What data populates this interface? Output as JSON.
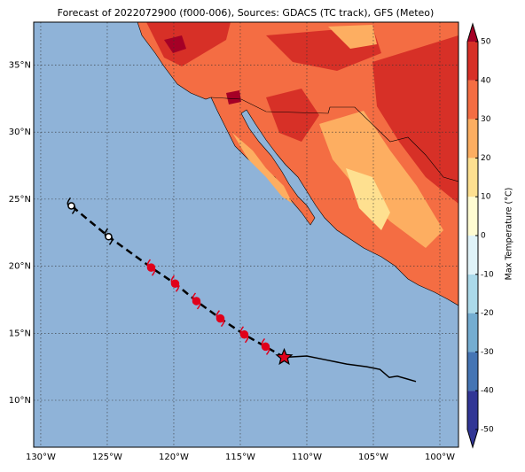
{
  "title": "Forecast of 2022072900 (f000-006), Sources: GDACS (TC track), GFS (Meteo)",
  "map": {
    "lon_lim": [
      -130.53,
      -98.6
    ],
    "lat_lim": [
      6.5,
      38.2
    ],
    "lon_ticks": [
      {
        "value": -130,
        "label": "130°W"
      },
      {
        "value": -125,
        "label": "125°W"
      },
      {
        "value": -120,
        "label": "120°W"
      },
      {
        "value": -115,
        "label": "115°W"
      },
      {
        "value": -110,
        "label": "110°W"
      },
      {
        "value": -105,
        "label": "105°W"
      },
      {
        "value": -100,
        "label": "100°W"
      }
    ],
    "lat_ticks": [
      {
        "value": 10,
        "label": "10°N"
      },
      {
        "value": 15,
        "label": "15°N"
      },
      {
        "value": 20,
        "label": "20°N"
      },
      {
        "value": 25,
        "label": "25°N"
      },
      {
        "value": 30,
        "label": "30°N"
      },
      {
        "value": 35,
        "label": "35°N"
      }
    ],
    "grid": true
  },
  "track": {
    "current": [
      -111.7,
      13.2
    ],
    "forecast_lon": [
      -113.1,
      -114.7,
      -116.5,
      -118.3,
      -119.9,
      -121.7,
      -124.9,
      -127.7
    ],
    "forecast_lat": [
      14.0,
      14.9,
      16.1,
      17.4,
      18.7,
      19.9,
      22.2,
      24.5
    ],
    "past_lon": [
      -111.7,
      -110.0,
      -108.5,
      -107.0,
      -105.5,
      -104.5,
      -103.8,
      -103.2,
      -102.5,
      -101.8
    ],
    "past_lat": [
      13.2,
      13.3,
      13.0,
      12.7,
      12.5,
      12.3,
      11.7,
      11.8,
      11.6,
      11.4
    ]
  },
  "colorbar": {
    "label": "Max Temperature (°C)",
    "lim": [
      -50,
      50
    ],
    "ticks": [
      -50,
      -40,
      -30,
      -20,
      -10,
      0,
      10,
      20,
      30,
      40,
      50
    ],
    "colors": [
      "#313695",
      "#4575b4",
      "#74add1",
      "#abd9e9",
      "#e0f3f8",
      "#fffcd2",
      "#fee090",
      "#fdae61",
      "#f46d43",
      "#d73027",
      "#a50026"
    ]
  }
}
